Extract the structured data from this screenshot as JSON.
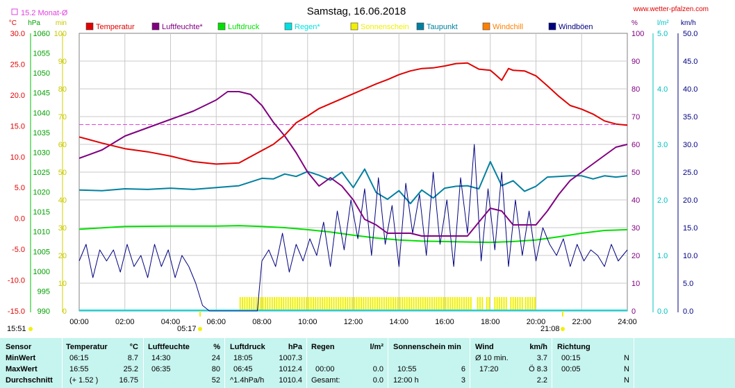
{
  "header": {
    "title": "Samstag, 16.06.2018",
    "website": "www.wetter-pfalzen.com",
    "monthly_avg": "15.2 Monat-Ø",
    "sunrise": "05:17",
    "sunset": "21:08",
    "time_left": "15:51"
  },
  "colors": {
    "temperature": "#e00000",
    "humidity": "#800080",
    "pressure": "#00e000",
    "rain": "#00e0e0",
    "sunshine": "#f0f000",
    "dewpoint": "#0080a0",
    "windchill": "#ff8000",
    "gusts": "#000080",
    "grid": "#c8c8c8",
    "stats_bg": "#c6f4ef"
  },
  "chart_data": {
    "type": "line",
    "title": "Samstag, 16.06.2018",
    "legend": [
      {
        "name": "Temperatur",
        "color": "#e00000"
      },
      {
        "name": "Luftfeuchte*",
        "color": "#800080"
      },
      {
        "name": "Luftdruck",
        "color": "#00e000"
      },
      {
        "name": "Regen*",
        "color": "#00e0e0"
      },
      {
        "name": "Sonnenschein",
        "color": "#f0f000"
      },
      {
        "name": "Taupunkt",
        "color": "#0080a0"
      },
      {
        "name": "Windchill",
        "color": "#ff8000"
      },
      {
        "name": "Windböen",
        "color": "#000080"
      }
    ],
    "axes": {
      "temp": {
        "unit": "°C",
        "min": -15,
        "max": 30,
        "ticks": [
          "30.0",
          "25.0",
          "20.0",
          "15.0",
          "10.0",
          "5.0",
          "0.0",
          "-5.0",
          "-10.0",
          "-15.0"
        ]
      },
      "pressure": {
        "unit": "hPa",
        "min": 990,
        "max": 1060,
        "ticks": [
          "1060",
          "1055",
          "1050",
          "1045",
          "1040",
          "1035",
          "1030",
          "1025",
          "1020",
          "1015",
          "1010",
          "1005",
          "1000",
          "995",
          "990"
        ]
      },
      "sun": {
        "unit": "min",
        "min": 0,
        "max": 100,
        "ticks": [
          "100",
          "90",
          "80",
          "70",
          "60",
          "50",
          "40",
          "30",
          "20",
          "10",
          "0"
        ]
      },
      "humidity": {
        "unit": "%",
        "min": 0,
        "max": 100,
        "ticks": [
          "100",
          "90",
          "80",
          "70",
          "60",
          "50",
          "40",
          "30",
          "20",
          "10",
          "0"
        ]
      },
      "rain": {
        "unit": "l/m²",
        "min": 0,
        "max": 5,
        "ticks": [
          "5.0",
          "4.0",
          "3.0",
          "2.0",
          "1.0",
          "0.0"
        ]
      },
      "wind": {
        "unit": "km/h",
        "min": 0,
        "max": 50,
        "ticks": [
          "50.0",
          "45.0",
          "40.0",
          "35.0",
          "30.0",
          "25.0",
          "20.0",
          "15.0",
          "10.0",
          "5.0",
          "0.0"
        ]
      },
      "x": {
        "min": 0,
        "max": 24,
        "ticks": [
          "00:00",
          "02:00",
          "04:00",
          "06:00",
          "08:00",
          "10:00",
          "12:00",
          "14:00",
          "16:00",
          "18:00",
          "20:00",
          "22:00",
          "24:00"
        ]
      }
    },
    "monthly_avg_temp": 15.2,
    "series": [
      {
        "name": "Temperatur",
        "axis": "temp",
        "color": "#e00000",
        "x": [
          0,
          1,
          2,
          3,
          4,
          5,
          6,
          7,
          7.5,
          8,
          8.5,
          9,
          9.5,
          10,
          10.5,
          11,
          11.5,
          12,
          12.5,
          13,
          13.5,
          14,
          14.5,
          15,
          15.5,
          16,
          16.5,
          17,
          17.5,
          18,
          18.2,
          18.5,
          18.8,
          19,
          19.5,
          20,
          20.5,
          21,
          21.5,
          22,
          22.5,
          23,
          23.5,
          24
        ],
        "y": [
          13.2,
          12.2,
          11.3,
          10.8,
          10.1,
          9.2,
          8.8,
          9.0,
          10.0,
          11.0,
          12.0,
          13.5,
          15.5,
          16.6,
          17.8,
          18.6,
          19.4,
          20.2,
          21.0,
          21.8,
          22.5,
          23.3,
          23.9,
          24.3,
          24.4,
          24.7,
          25.1,
          25.2,
          24.2,
          24.0,
          23.4,
          22.4,
          24.3,
          24.0,
          23.9,
          23.1,
          21.5,
          19.8,
          18.3,
          17.7,
          16.9,
          15.8,
          15.3,
          15.1
        ]
      },
      {
        "name": "Luftfeuchte*",
        "axis": "humidity",
        "color": "#800080",
        "x": [
          0,
          1,
          2,
          3,
          4,
          5,
          6,
          6.5,
          7,
          7.5,
          8,
          8.5,
          9,
          9.5,
          10,
          10.5,
          11,
          11.5,
          12,
          12.5,
          13,
          13.5,
          14,
          14.5,
          15,
          16,
          17,
          17.5,
          18,
          18.5,
          19,
          19.5,
          20,
          20.5,
          21,
          21.5,
          22,
          22.5,
          23,
          23.5,
          24
        ],
        "y": [
          55,
          58,
          63,
          66,
          69,
          72,
          76,
          79,
          79,
          78,
          74,
          68,
          63,
          57,
          50,
          45,
          48,
          45,
          40,
          33,
          31,
          28,
          28,
          28,
          27,
          27,
          27,
          32,
          37,
          36,
          31,
          31,
          31,
          36,
          42,
          47,
          50,
          53,
          56,
          59,
          60
        ]
      },
      {
        "name": "Luftdruck",
        "axis": "pressure",
        "color": "#00e000",
        "x": [
          0,
          2,
          4,
          6,
          7,
          8,
          9,
          10,
          11,
          12,
          13,
          14,
          15,
          16,
          17,
          18,
          19,
          20,
          21,
          22,
          23,
          24
        ],
        "y": [
          1010.6,
          1011.3,
          1011.4,
          1011.4,
          1011.5,
          1011.3,
          1011.0,
          1010.5,
          1009.9,
          1009.1,
          1008.4,
          1007.9,
          1007.6,
          1007.5,
          1007.4,
          1007.3,
          1007.5,
          1007.9,
          1008.7,
          1009.6,
          1010.3,
          1010.5
        ]
      },
      {
        "name": "Taupunkt",
        "axis": "temp",
        "color": "#0080a0",
        "x": [
          0,
          1,
          2,
          3,
          4,
          5,
          6,
          7,
          8,
          8.5,
          9,
          9.5,
          10,
          10.5,
          11,
          11.5,
          12,
          12.5,
          13,
          13.5,
          14,
          14.5,
          15,
          15.5,
          16,
          16.5,
          17,
          17.5,
          18,
          18.5,
          19,
          19.5,
          20,
          20.5,
          21,
          21.5,
          22,
          22.5,
          23,
          23.5,
          24
        ],
        "y": [
          4.6,
          4.5,
          4.8,
          4.7,
          4.9,
          4.7,
          5.0,
          5.3,
          6.5,
          6.4,
          7.2,
          6.8,
          7.6,
          7.0,
          6.2,
          7.5,
          5.0,
          8.0,
          4.2,
          3.1,
          4.5,
          2.4,
          4.6,
          3.3,
          4.9,
          5.2,
          5.3,
          4.8,
          9.2,
          5.3,
          6.1,
          4.4,
          5.2,
          6.7,
          6.8,
          6.9,
          6.9,
          6.4,
          6.9,
          6.7,
          6.9
        ]
      },
      {
        "name": "Windböen",
        "axis": "wind",
        "color": "#000080",
        "x": [
          0,
          0.3,
          0.6,
          0.9,
          1.2,
          1.5,
          1.8,
          2.1,
          2.4,
          2.7,
          3.0,
          3.3,
          3.6,
          3.9,
          4.2,
          4.5,
          4.8,
          5.1,
          5.4,
          5.7,
          6.0,
          6.5,
          7.0,
          7.5,
          7.8,
          8.0,
          8.3,
          8.6,
          8.9,
          9.2,
          9.5,
          9.8,
          10.1,
          10.4,
          10.7,
          11.0,
          11.3,
          11.6,
          11.9,
          12.2,
          12.5,
          12.8,
          13.1,
          13.4,
          13.7,
          14.0,
          14.3,
          14.6,
          14.9,
          15.2,
          15.5,
          15.8,
          16.1,
          16.4,
          16.7,
          17.0,
          17.3,
          17.6,
          17.9,
          18.2,
          18.5,
          18.8,
          19.1,
          19.4,
          19.7,
          20.0,
          20.3,
          20.6,
          20.9,
          21.2,
          21.5,
          21.8,
          22.1,
          22.4,
          22.7,
          23.0,
          23.3,
          23.6,
          24.0
        ],
        "y": [
          9,
          12,
          6,
          11,
          9,
          11,
          7,
          12,
          8,
          10,
          6,
          12,
          8,
          11,
          6,
          10,
          8,
          5,
          1,
          0,
          0,
          0,
          0,
          0,
          0,
          9,
          11,
          8,
          14,
          7,
          12,
          9,
          13,
          10,
          16,
          8,
          18,
          11,
          20,
          13,
          22,
          10,
          24,
          12,
          19,
          8,
          23,
          14,
          21,
          10,
          25,
          12,
          20,
          8,
          24,
          14,
          30,
          9,
          22,
          11,
          25,
          8,
          20,
          10,
          18,
          9,
          15,
          12,
          10,
          13,
          8,
          12,
          9,
          11,
          10,
          8,
          12,
          9,
          11
        ]
      }
    ],
    "sunshine_bars": {
      "axis": "sun",
      "intervals": [
        [
          7.05,
          17.2
        ],
        [
          17.45,
          17.75
        ],
        [
          17.85,
          18.0
        ],
        [
          18.2,
          18.75
        ],
        [
          18.9,
          19.5
        ],
        [
          19.55,
          20.0
        ]
      ],
      "height": 5
    }
  },
  "stats": {
    "sensor": {
      "header": "Sensor",
      "rows": [
        "MinWert",
        "MaxWert",
        "Durchschnitt"
      ]
    },
    "temperature": {
      "header": "Temperatur",
      "unit": "°C",
      "rows": [
        [
          "06:15",
          "8.7"
        ],
        [
          "16:55",
          "25.2"
        ],
        [
          "(+ 1.52 )",
          "16.75"
        ]
      ]
    },
    "humidity": {
      "header": "Luftfeuchte",
      "unit": "%",
      "rows": [
        [
          "14:30",
          "24"
        ],
        [
          "06:35",
          "80"
        ],
        [
          "",
          "52"
        ]
      ]
    },
    "pressure": {
      "header": "Luftdruck",
      "unit": "hPa",
      "rows": [
        [
          "18:05",
          "1007.3"
        ],
        [
          "06:45",
          "1012.4"
        ],
        [
          "^1.4hPa/h",
          "1010.4"
        ]
      ]
    },
    "rain": {
      "header": "Regen",
      "unit": "l/m²",
      "rows": [
        [
          "",
          ""
        ],
        [
          "00:00",
          "0.0"
        ],
        [
          "Gesamt:",
          "0.0"
        ]
      ]
    },
    "sunshine": {
      "header": "Sonnenschein min",
      "rows": [
        [
          "",
          ""
        ],
        [
          "10:55",
          "6"
        ],
        [
          "12:00 h",
          "3"
        ]
      ]
    },
    "wind": {
      "header": "Wind",
      "unit": "km/h",
      "rows": [
        [
          "Ø 10 min.",
          "3.7"
        ],
        [
          "17:20",
          "Ö 8.3"
        ],
        [
          "",
          "2.2"
        ]
      ]
    },
    "direction": {
      "header": "Richtung",
      "rows": [
        [
          "00:15",
          "N"
        ],
        [
          "00:05",
          "N"
        ],
        [
          "",
          "N"
        ]
      ]
    }
  }
}
